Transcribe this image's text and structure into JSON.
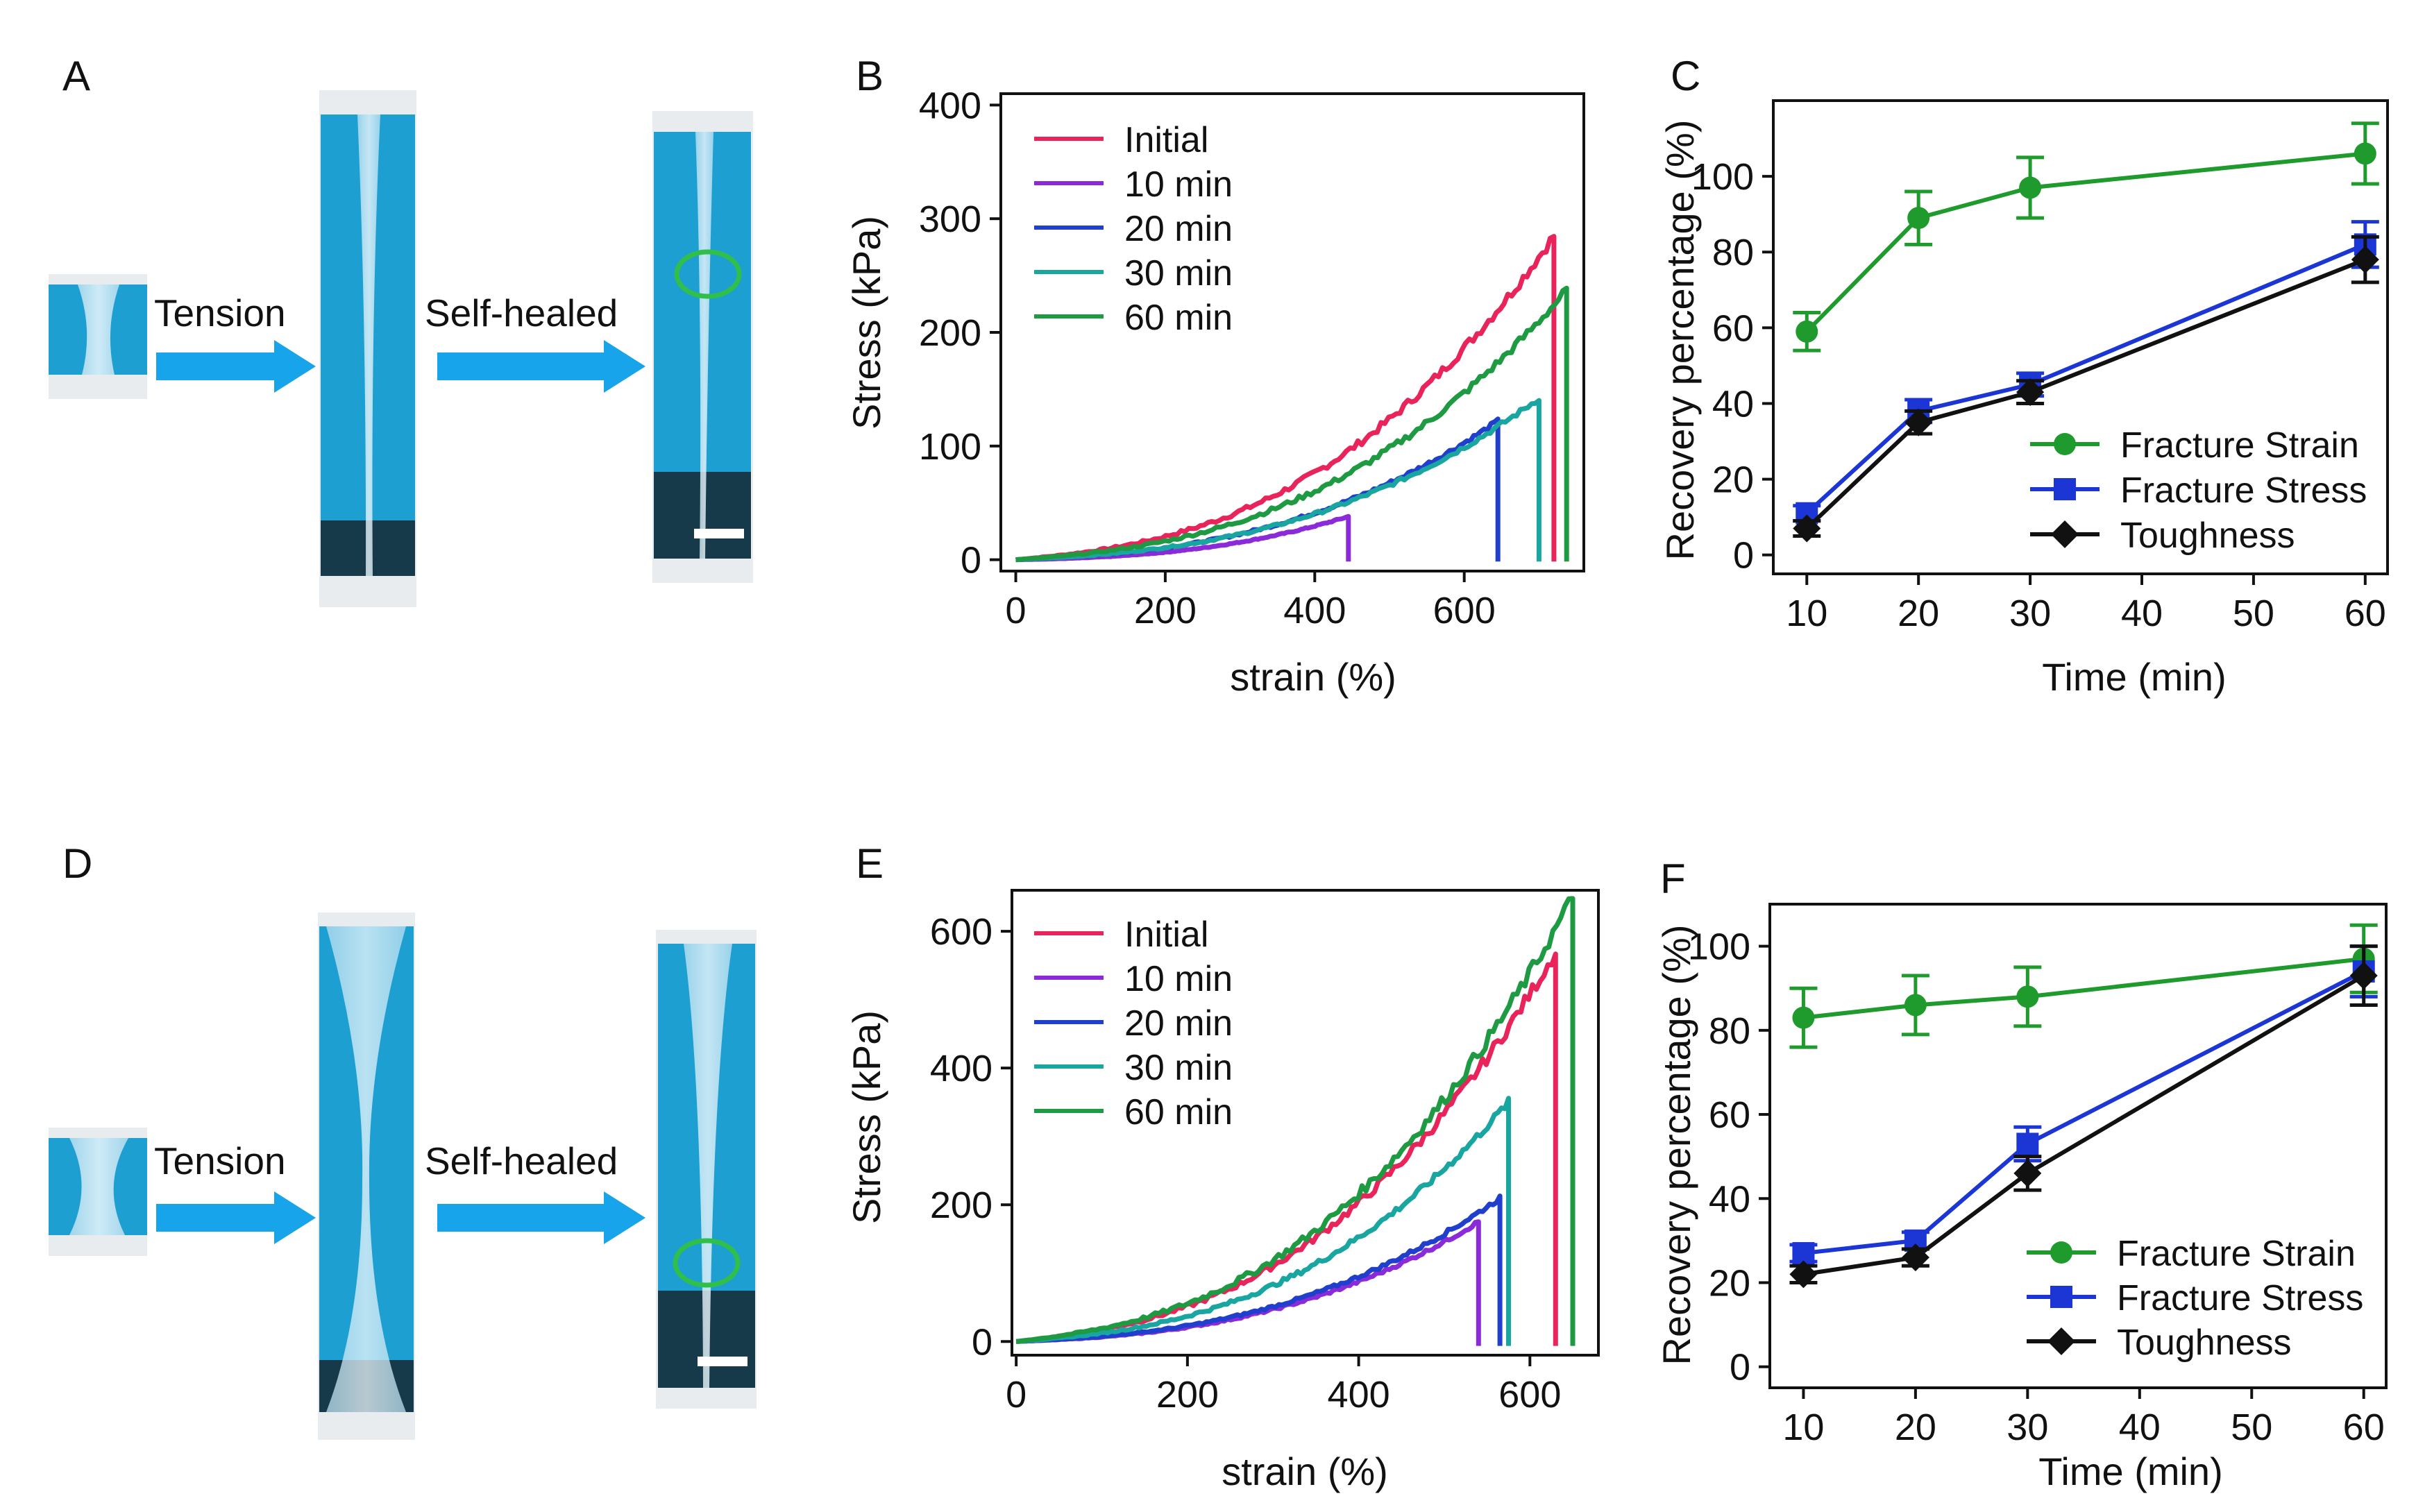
{
  "figure": {
    "panel_labels": {
      "A": "A",
      "B": "B",
      "C": "C",
      "D": "D",
      "E": "E",
      "F": "F"
    },
    "photo_labels": {
      "tension": "Tension",
      "self_healed": "Self-healed"
    },
    "colors": {
      "photo_background": "#1d9fd2",
      "arrow": "#18a4ea",
      "heal_mark": "#2fbf4a",
      "initial": "#e8245b",
      "min10": "#8b2ad8",
      "min20": "#1f3fcc",
      "min30": "#19a5a0",
      "min60": "#1e9a43",
      "fracture_strain": "#1f9a2c",
      "fracture_stress": "#1c36d6",
      "toughness": "#111111"
    }
  },
  "chart_data": [
    {
      "id": "B",
      "type": "line",
      "xlabel": "strain (%)",
      "ylabel": "Stress (kPa)",
      "xlim": [
        -20,
        760
      ],
      "ylim": [
        -10,
        410
      ],
      "xticks": [
        0,
        200,
        400,
        600
      ],
      "yticks": [
        0,
        100,
        200,
        300,
        400
      ],
      "series": [
        {
          "name": "Initial",
          "color": "#e8245b",
          "end": 720,
          "peak": 285
        },
        {
          "name": "10 min",
          "color": "#8b2ad8",
          "end": 445,
          "peak": 38
        },
        {
          "name": "20 min",
          "color": "#1f3fcc",
          "end": 645,
          "peak": 122
        },
        {
          "name": "30 min",
          "color": "#19a5a0",
          "end": 700,
          "peak": 142
        },
        {
          "name": "60 min",
          "color": "#1e9a43",
          "end": 737,
          "peak": 237
        }
      ]
    },
    {
      "id": "C",
      "type": "line",
      "xlabel": "Time (min)",
      "ylabel": "Recovery percentage (%)",
      "xlim": [
        7,
        62
      ],
      "ylim": [
        -5,
        120
      ],
      "xticks": [
        10,
        20,
        30,
        40,
        50,
        60
      ],
      "yticks": [
        0,
        20,
        40,
        60,
        80,
        100
      ],
      "x": [
        10,
        20,
        30,
        60
      ],
      "series": [
        {
          "name": "Fracture Strain",
          "color": "#1f9a2c",
          "marker": "circle",
          "values": [
            59,
            89,
            97,
            106
          ],
          "err": [
            5,
            7,
            8,
            8
          ]
        },
        {
          "name": "Fracture Stress",
          "color": "#1c36d6",
          "marker": "square",
          "values": [
            11,
            38,
            45,
            82
          ],
          "err": [
            2,
            3,
            3,
            6
          ]
        },
        {
          "name": "Toughness",
          "color": "#111111",
          "marker": "diamond",
          "values": [
            7,
            35,
            43,
            78
          ],
          "err": [
            2,
            3,
            3,
            6
          ]
        }
      ]
    },
    {
      "id": "E",
      "type": "line",
      "xlabel": "strain (%)",
      "ylabel": "Stress (kPa)",
      "xlim": [
        -5,
        680
      ],
      "ylim": [
        -20,
        660
      ],
      "xticks": [
        0,
        200,
        400,
        600
      ],
      "yticks": [
        0,
        200,
        400,
        600
      ],
      "series": [
        {
          "name": "Initial",
          "color": "#e8245b",
          "end": 630,
          "peak": 570
        },
        {
          "name": "10 min",
          "color": "#8b2ad8",
          "end": 540,
          "peak": 175
        },
        {
          "name": "20 min",
          "color": "#1f3fcc",
          "end": 565,
          "peak": 210
        },
        {
          "name": "30 min",
          "color": "#19a5a0",
          "end": 575,
          "peak": 350
        },
        {
          "name": "60 min",
          "color": "#1e9a43",
          "end": 650,
          "peak": 650
        }
      ]
    },
    {
      "id": "F",
      "type": "line",
      "xlabel": "Time (min)",
      "ylabel": "Recovery percentage (%)",
      "xlim": [
        7,
        62
      ],
      "ylim": [
        -5,
        110
      ],
      "xticks": [
        10,
        20,
        30,
        40,
        50,
        60
      ],
      "yticks": [
        0,
        20,
        40,
        60,
        80,
        100
      ],
      "x": [
        10,
        20,
        30,
        60
      ],
      "series": [
        {
          "name": "Fracture Strain",
          "color": "#1f9a2c",
          "marker": "circle",
          "values": [
            83,
            86,
            88,
            97
          ],
          "err": [
            7,
            7,
            7,
            8
          ]
        },
        {
          "name": "Fracture Stress",
          "color": "#1c36d6",
          "marker": "square",
          "values": [
            27,
            30,
            53,
            94
          ],
          "err": [
            2,
            2,
            4,
            6
          ]
        },
        {
          "name": "Toughness",
          "color": "#111111",
          "marker": "diamond",
          "values": [
            22,
            26,
            46,
            93
          ],
          "err": [
            2,
            2,
            4,
            7
          ]
        }
      ]
    }
  ]
}
